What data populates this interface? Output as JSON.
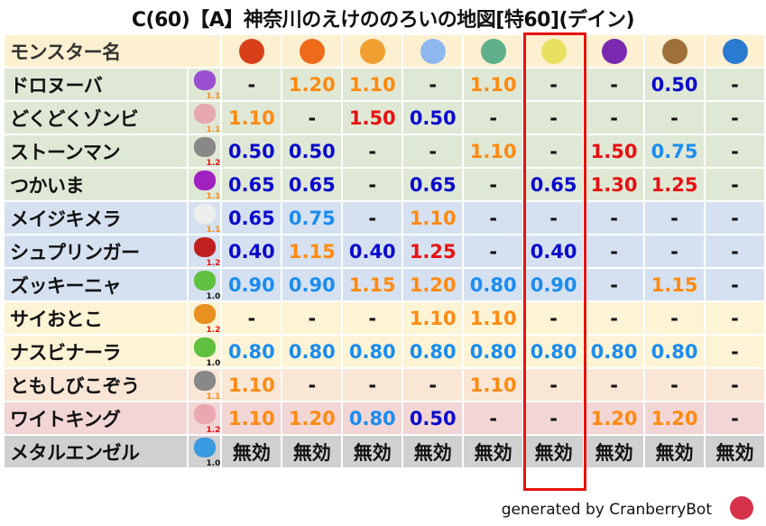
{
  "title": "C(60)【A】神奈川のえけののろいの地図[特60](デイン)",
  "header": {
    "name_label": "モンスター名",
    "elements": [
      {
        "icon": "fire-ball-icon",
        "color": "#d9401a"
      },
      {
        "icon": "flame-icon",
        "color": "#f06a1c"
      },
      {
        "icon": "explosion-icon",
        "color": "#f0a030"
      },
      {
        "icon": "ice-icon",
        "color": "#8fb8f0"
      },
      {
        "icon": "wind-icon",
        "color": "#5fb08a"
      },
      {
        "icon": "lightning-icon",
        "color": "#e8e060"
      },
      {
        "icon": "dark-icon",
        "color": "#7a2ab0"
      },
      {
        "icon": "earth-icon",
        "color": "#a0703a"
      },
      {
        "icon": "water-icon",
        "color": "#2a7ad0"
      }
    ]
  },
  "highlight_column": 6,
  "colors": {
    "strong_resist": "#0a0acc",
    "resist": "#1a8cf0",
    "weak": "#ff8a10",
    "very_weak": "#e81010",
    "neutral": "#111111"
  },
  "rows": [
    {
      "name": "ドロヌーバ",
      "icon": "slime-cloud-icon",
      "icon_color": "#9a50d0",
      "level": "1.1",
      "level_color": "#ff8a10",
      "bg": "#dfe8d5",
      "values": [
        "-",
        "1.20",
        "1.10",
        "-",
        "1.10",
        "-",
        "-",
        "0.50",
        "-"
      ]
    },
    {
      "name": "どくどくゾンビ",
      "icon": "skull-icon",
      "icon_color": "#e8a8b0",
      "level": "1.1",
      "level_color": "#ff8a10",
      "bg": "#dfe8d5",
      "values": [
        "1.10",
        "-",
        "1.50",
        "0.50",
        "-",
        "-",
        "-",
        "-",
        "-"
      ]
    },
    {
      "name": "ストーンマン",
      "icon": "brick-icon",
      "icon_color": "#888",
      "level": "1.2",
      "level_color": "#e81010",
      "bg": "#dfe8d5",
      "values": [
        "0.50",
        "0.50",
        "-",
        "-",
        "1.10",
        "-",
        "1.50",
        "0.75",
        "-"
      ]
    },
    {
      "name": "つかいま",
      "icon": "trident-icon",
      "icon_color": "#a020c0",
      "level": "1.1",
      "level_color": "#ff8a10",
      "bg": "#dfe8d5",
      "values": [
        "0.65",
        "0.65",
        "-",
        "0.65",
        "-",
        "0.65",
        "1.30",
        "1.25",
        "-"
      ]
    },
    {
      "name": "メイジキメラ",
      "icon": "wing-icon",
      "icon_color": "#eeeeee",
      "level": "1.1",
      "level_color": "#ff8a10",
      "bg": "#d5e1f0",
      "values": [
        "0.65",
        "0.75",
        "-",
        "1.10",
        "-",
        "-",
        "-",
        "-",
        "-"
      ]
    },
    {
      "name": "シュプリンガー",
      "icon": "dragon-icon",
      "icon_color": "#c02020",
      "level": "1.2",
      "level_color": "#e81010",
      "bg": "#d5e1f0",
      "values": [
        "0.40",
        "1.15",
        "0.40",
        "1.25",
        "-",
        "0.40",
        "-",
        "-",
        "-"
      ]
    },
    {
      "name": "ズッキーニャ",
      "icon": "leaf-icon",
      "icon_color": "#60c040",
      "level": "1.0",
      "level_color": "#111",
      "bg": "#d5e1f0",
      "values": [
        "0.90",
        "0.90",
        "1.15",
        "1.20",
        "0.80",
        "0.90",
        "-",
        "1.15",
        "-"
      ]
    },
    {
      "name": "サイおとこ",
      "icon": "paw-icon",
      "icon_color": "#e89020",
      "level": "1.2",
      "level_color": "#e81010",
      "bg": "#fdf3d5",
      "values": [
        "-",
        "-",
        "-",
        "1.10",
        "1.10",
        "-",
        "-",
        "-",
        "-"
      ]
    },
    {
      "name": "ナスビナーラ",
      "icon": "leaf-icon",
      "icon_color": "#60c040",
      "level": "1.0",
      "level_color": "#111",
      "bg": "#fdf3d5",
      "values": [
        "0.80",
        "0.80",
        "0.80",
        "0.80",
        "0.80",
        "0.80",
        "0.80",
        "0.80",
        "-"
      ]
    },
    {
      "name": "ともしびこぞう",
      "icon": "brick-icon",
      "icon_color": "#888",
      "level": "1.1",
      "level_color": "#ff8a10",
      "bg": "#f9e6d5",
      "values": [
        "1.10",
        "-",
        "-",
        "-",
        "1.10",
        "-",
        "-",
        "-",
        "-"
      ]
    },
    {
      "name": "ワイトキング",
      "icon": "skull-icon",
      "icon_color": "#e8a8b0",
      "level": "1.2",
      "level_color": "#e81010",
      "bg": "#f2d5d5",
      "values": [
        "1.10",
        "1.20",
        "0.80",
        "0.50",
        "-",
        "-",
        "1.20",
        "1.20",
        "-"
      ]
    },
    {
      "name": "メタルエンゼル",
      "icon": "slime-icon",
      "icon_color": "#3a9ae0",
      "level": "1.0",
      "level_color": "#111",
      "bg": "#d0d0d0",
      "values": [
        "無効",
        "無効",
        "無効",
        "無効",
        "無効",
        "無効",
        "無効",
        "無効",
        "無効"
      ]
    }
  ],
  "footer": "generated by CranberryBot"
}
